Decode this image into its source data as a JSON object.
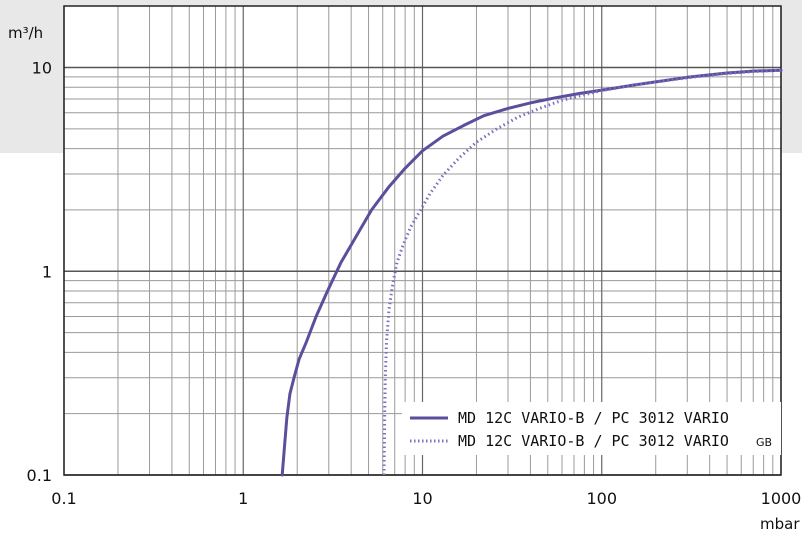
{
  "chart_data": {
    "type": "line",
    "x_scale": "log",
    "y_scale": "log",
    "xlim": [
      0.1,
      1000
    ],
    "ylim": [
      0.1,
      20
    ],
    "x_ticks": [
      0.1,
      1,
      10,
      100,
      1000
    ],
    "x_tick_labels": [
      "0.1",
      "1",
      "10",
      "100",
      "1000"
    ],
    "y_ticks": [
      0.1,
      1,
      10
    ],
    "y_tick_labels": [
      "0.1",
      "1",
      "10"
    ],
    "xlabel": "mbar",
    "ylabel": "m³/h",
    "grid": true,
    "legend_position": "bottom-right",
    "series": [
      {
        "name": "MD 12C VARIO-B / PC 3012 VARIO",
        "style": "solid",
        "color": "#5b4f9b",
        "x": [
          1.65,
          1.7,
          1.75,
          1.82,
          1.92,
          2.05,
          2.25,
          2.55,
          2.95,
          3.5,
          4.2,
          5.2,
          6.5,
          8,
          10,
          13,
          17,
          22,
          30,
          40,
          55,
          75,
          100,
          150,
          200,
          300,
          500,
          700,
          1000
        ],
        "y": [
          0.1,
          0.14,
          0.19,
          0.25,
          0.3,
          0.37,
          0.45,
          0.6,
          0.8,
          1.1,
          1.45,
          2.0,
          2.6,
          3.2,
          3.9,
          4.6,
          5.2,
          5.8,
          6.3,
          6.7,
          7.1,
          7.45,
          7.75,
          8.2,
          8.5,
          8.95,
          9.4,
          9.6,
          9.7
        ]
      },
      {
        "name": "MD 12C VARIO-B / PC 3012 VARIO",
        "name_suffix": "GB",
        "style": "dotted",
        "color": "#7b6fc0",
        "x": [
          6.1,
          6.15,
          6.2,
          6.3,
          6.5,
          6.8,
          7.2,
          7.8,
          8.6,
          9.6,
          11,
          13,
          16,
          20,
          26,
          34,
          45,
          60,
          80,
          100,
          150,
          200,
          300,
          500,
          700,
          1000
        ],
        "y": [
          0.1,
          0.2,
          0.3,
          0.45,
          0.65,
          0.85,
          1.1,
          1.35,
          1.65,
          1.95,
          2.4,
          2.95,
          3.6,
          4.3,
          5.0,
          5.7,
          6.3,
          6.9,
          7.35,
          7.7,
          8.2,
          8.5,
          8.9,
          9.35,
          9.55,
          9.7
        ]
      }
    ]
  }
}
